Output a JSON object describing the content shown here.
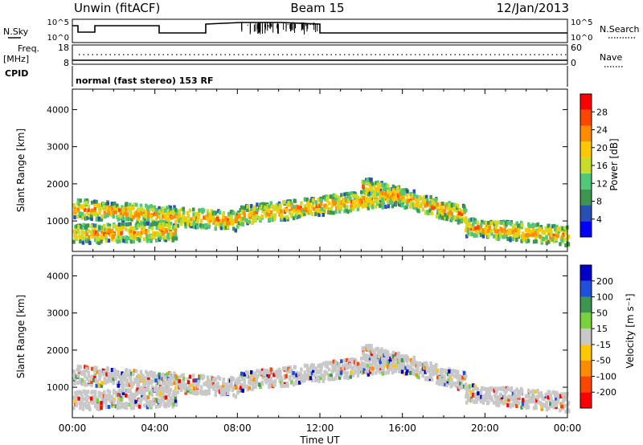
{
  "header": {
    "station": "Unwin (fitACF)",
    "beam": "Beam 15",
    "date": "12/Jan/2013"
  },
  "panels": {
    "nsky_label": "N.Sky",
    "nsearch_label": "N.Search",
    "nsky_ticks": [
      "10^5",
      "10^0"
    ],
    "freq_label": "Freq.",
    "freq_unit": "[MHz]",
    "freq_ticks": [
      "18",
      "8"
    ],
    "nave_label": "Nave",
    "nave_ticks": [
      "60",
      "0"
    ],
    "cpid_label": "CPID",
    "cpid_text": "normal (fast stereo) 153 RF"
  },
  "chart_data": [
    {
      "type": "heatmap",
      "quantity": "power",
      "ylabel": "Slant Range [km]",
      "yticks": [
        1000,
        2000,
        3000,
        4000
      ],
      "ylim": [
        180,
        4550
      ],
      "colorbar_label": "Power [dB]",
      "colorbar_ticks": [
        4,
        8,
        12,
        16,
        20,
        24,
        28
      ],
      "colorbar_range": [
        0,
        32
      ],
      "colorbar_colors": [
        "#0000ff",
        "#2850b4",
        "#3c9650",
        "#50c878",
        "#c8dc28",
        "#ffc800",
        "#ff8c00",
        "#ff4600",
        "#ff0000"
      ],
      "echo_bands": [
        {
          "t_start": 0.0,
          "t_end": 8.0,
          "range_start": 1300,
          "range_end": 950
        },
        {
          "t_start": 8.0,
          "t_end": 16.0,
          "range_start": 1100,
          "range_end": 1650
        },
        {
          "t_start": 14.0,
          "t_end": 19.0,
          "range_start": 1900,
          "range_end": 1100
        },
        {
          "t_start": 0.0,
          "t_end": 5.0,
          "range_start": 600,
          "range_end": 700
        },
        {
          "t_start": 19.0,
          "t_end": 24.0,
          "range_start": 800,
          "range_end": 550
        }
      ]
    },
    {
      "type": "heatmap",
      "quantity": "velocity",
      "xlabel": "Time UT",
      "ylabel": "Slant Range [km]",
      "xticks": [
        "00:00",
        "04:00",
        "08:00",
        "12:00",
        "16:00",
        "20:00",
        "00:00"
      ],
      "xlim": [
        0,
        24
      ],
      "yticks": [
        1000,
        2000,
        3000,
        4000
      ],
      "ylim": [
        180,
        4550
      ],
      "colorbar_label": "Velocity [m s⁻¹]",
      "colorbar_ticks": [
        "200",
        "100",
        "50",
        "15",
        "-15",
        "-50",
        "-100",
        "-200"
      ],
      "colorbar_colors": [
        "#0000c8",
        "#1e50dc",
        "#3c9650",
        "#78d23c",
        "#c8c8c8",
        "#ffc800",
        "#ff8c00",
        "#ff4600",
        "#ff0000"
      ]
    }
  ]
}
